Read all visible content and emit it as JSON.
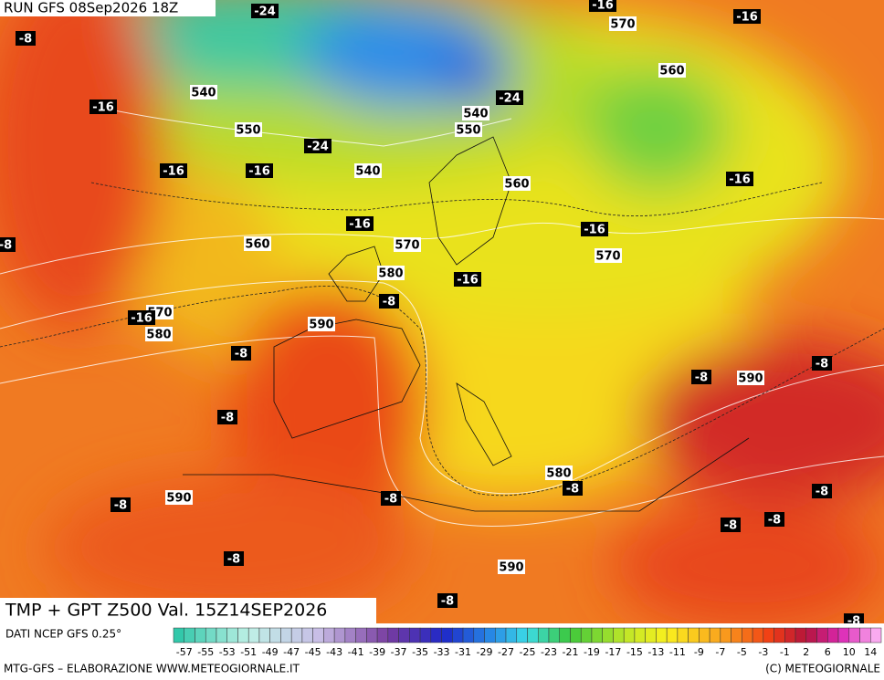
{
  "header": {
    "run": "RUN GFS 08Sep2026 18Z"
  },
  "map": {
    "labels": [
      -8,
      -24,
      -16,
      570,
      -16,
      560,
      540,
      -16,
      -24,
      540,
      550,
      550,
      -24,
      -16,
      -16,
      540,
      560,
      -16,
      -16,
      -16,
      560,
      570,
      -8,
      570,
      580,
      -16,
      -8,
      570,
      -16,
      580,
      590,
      -8,
      -8,
      590,
      -8,
      -8,
      580,
      -8,
      -8,
      590,
      -8,
      -8,
      -8,
      -8,
      -8,
      590,
      -8,
      -8
    ]
  },
  "footer": {
    "title": "TMP + GPT Z500 Val. 15Z14SEP2026",
    "source": "DATI NCEP GFS 0.25°",
    "credits": "MTG-GFS – ELABORAZIONE WWW.METEOGIORNALE.IT",
    "copyright": "(C) METEOGIORNALE",
    "scale": [
      -57,
      -55,
      -53,
      -51,
      -49,
      -47,
      -45,
      -43,
      -41,
      -39,
      -37,
      -35,
      -33,
      -31,
      -29,
      -27,
      -25,
      -23,
      -21,
      -19,
      -17,
      -15,
      -13,
      -11,
      -9,
      -7,
      -5,
      -3,
      -1,
      2,
      6,
      10,
      14
    ]
  }
}
